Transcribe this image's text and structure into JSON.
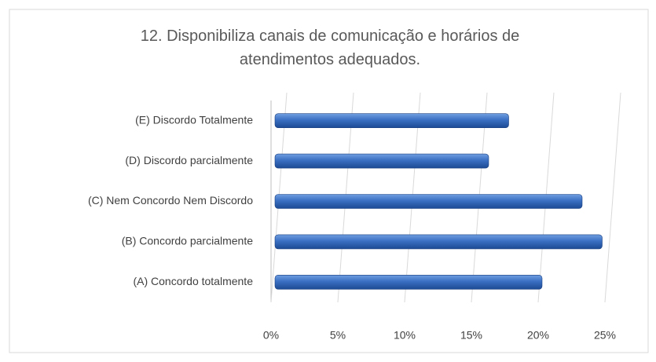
{
  "chart_data": {
    "type": "bar",
    "orientation": "horizontal",
    "title": "12. Disponibiliza canais de comunicação e horários de atendimentos adequados.",
    "categories": [
      "(A) Concordo totalmente",
      "(B) Concordo parcialmente",
      "(C) Nem Concordo Nem Discordo",
      "(D) Discordo parcialmente",
      "(E) Discordo Totalmente"
    ],
    "values": [
      20,
      24.5,
      23,
      16,
      17.5
    ],
    "color": "#2e62b4",
    "xlim": [
      0,
      25
    ],
    "xticks": [
      {
        "value": 0,
        "label": "0%"
      },
      {
        "value": 5,
        "label": "5%"
      },
      {
        "value": 10,
        "label": "10%"
      },
      {
        "value": 15,
        "label": "15%"
      },
      {
        "value": 20,
        "label": "20%"
      },
      {
        "value": 25,
        "label": "25%"
      }
    ],
    "grid": true
  }
}
